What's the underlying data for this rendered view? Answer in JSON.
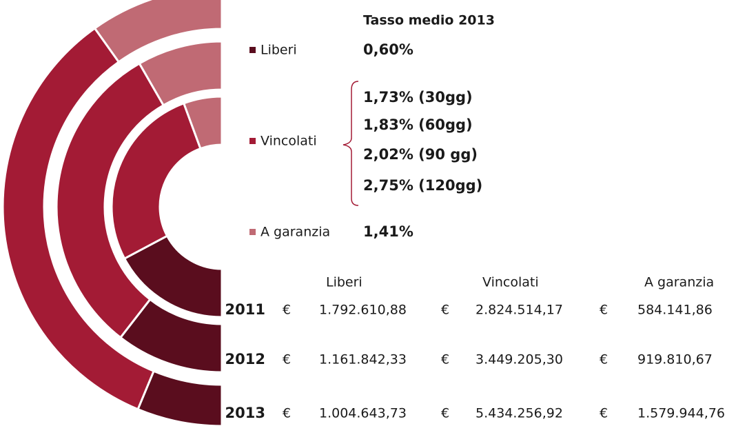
{
  "chart_data": {
    "type": "donut",
    "categories": [
      "Liberi",
      "Vincolati",
      "A garanzia"
    ],
    "colors": [
      "#5a0d1e",
      "#a31b35",
      "#c06a74"
    ],
    "currency": "€",
    "series": [
      {
        "name": "2011",
        "values": [
          1792610.88,
          2824514.17,
          584141.86
        ],
        "value_labels": [
          "1.792.610,88",
          "2.824.514,17",
          "584.141,86"
        ]
      },
      {
        "name": "2012",
        "values": [
          1161842.33,
          3449205.3,
          919810.67
        ],
        "value_labels": [
          "1.161.842,33",
          "3.449.205,30",
          "919.810,67"
        ]
      },
      {
        "name": "2013",
        "values": [
          1004643.73,
          5434256.92,
          1579944.76
        ],
        "value_labels": [
          "1.004.643,73",
          "5.434.256,92",
          "1.579.944,76"
        ]
      }
    ],
    "rates_title": "Tasso medio 2013",
    "rates": [
      [
        "0,60%"
      ],
      [
        "1,73% (30gg)",
        "1,83% (60gg)",
        "2,02% (90 gg)",
        "2,75% (120gg)"
      ],
      [
        "1,41%"
      ]
    ]
  }
}
